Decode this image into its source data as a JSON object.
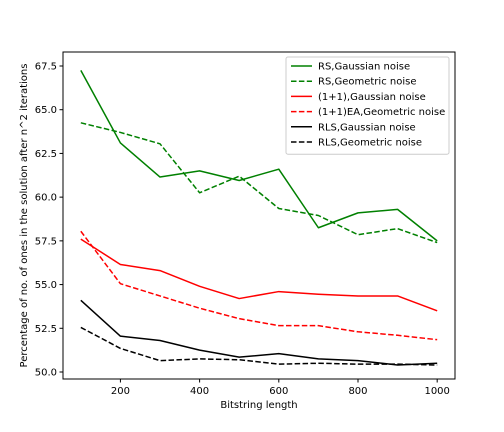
{
  "chart_data": {
    "type": "line",
    "title": "",
    "xlabel": "Bitstring length",
    "ylabel": "Percentage of no. of ones in the solution after n^2 iterations",
    "xlim": [
      55,
      1045
    ],
    "ylim": [
      49.6,
      68.3
    ],
    "x": [
      100,
      200,
      300,
      400,
      500,
      600,
      700,
      800,
      900,
      1000
    ],
    "xticks": [
      200,
      400,
      600,
      800,
      1000
    ],
    "xtick_labels": [
      "200",
      "400",
      "600",
      "800",
      "1000"
    ],
    "yticks": [
      50.0,
      52.5,
      55.0,
      57.5,
      60.0,
      62.5,
      65.0,
      67.5
    ],
    "ytick_labels": [
      "50.0",
      "52.5",
      "55.0",
      "57.5",
      "60.0",
      "62.5",
      "65.0",
      "67.5"
    ],
    "grid": false,
    "legend_position": "top-right",
    "series": [
      {
        "name": "RS,Gaussian noise",
        "color": "#008000",
        "dash": "solid",
        "values": [
          67.25,
          63.1,
          61.15,
          61.5,
          60.95,
          61.6,
          58.25,
          59.1,
          59.3,
          57.5
        ]
      },
      {
        "name": "RS,Geometric noise",
        "color": "#008000",
        "dash": "dashed",
        "values": [
          64.25,
          63.7,
          63.05,
          60.25,
          61.2,
          59.35,
          58.95,
          57.85,
          58.2,
          57.4
        ]
      },
      {
        "name": "(1+1),Gaussian noise",
        "color": "#ff0000",
        "dash": "solid",
        "values": [
          57.6,
          56.15,
          55.8,
          54.9,
          54.2,
          54.6,
          54.45,
          54.35,
          54.35,
          53.5
        ]
      },
      {
        "name": "(1+1)EA,Geometric noise",
        "color": "#ff0000",
        "dash": "dashed",
        "values": [
          58.05,
          55.05,
          54.35,
          53.65,
          53.05,
          52.65,
          52.65,
          52.3,
          52.1,
          51.85
        ]
      },
      {
        "name": "RLS,Gaussian noise",
        "color": "#000000",
        "dash": "solid",
        "values": [
          54.1,
          52.05,
          51.8,
          51.25,
          50.85,
          51.05,
          50.75,
          50.65,
          50.4,
          50.5
        ]
      },
      {
        "name": "RLS,Geometric noise",
        "color": "#000000",
        "dash": "dashed",
        "values": [
          52.55,
          51.35,
          50.65,
          50.75,
          50.7,
          50.45,
          50.5,
          50.45,
          50.45,
          50.4
        ]
      }
    ]
  }
}
